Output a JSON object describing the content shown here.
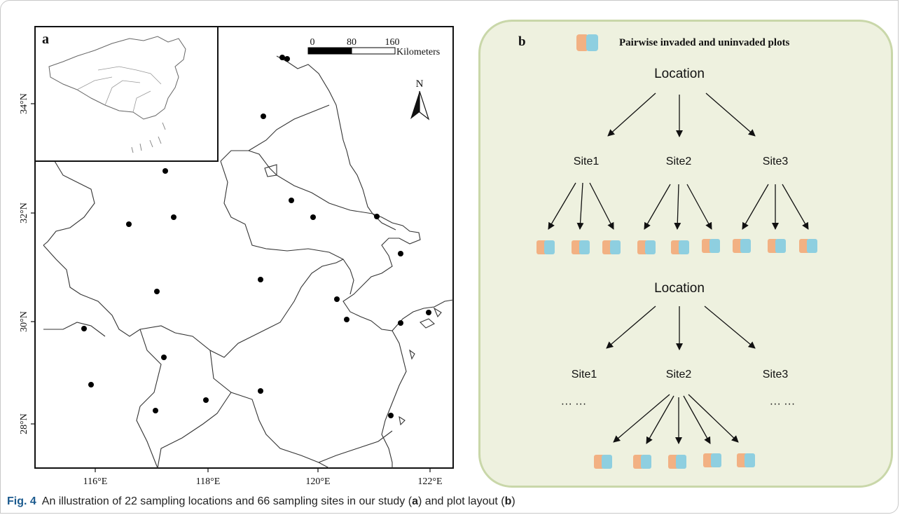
{
  "panel_a": {
    "label": "a",
    "lat_labels": [
      "34°N",
      "32°N",
      "30°N",
      "28°N"
    ],
    "lon_labels": [
      "116°E",
      "118°E",
      "120°E",
      "122°E"
    ],
    "scale_bar": {
      "ticks": [
        "0",
        "80",
        "160"
      ],
      "unit": "Kilometers"
    },
    "north_label": "N",
    "sampling_points_count": 22
  },
  "panel_b": {
    "label": "b",
    "legend_text": "Pairwise invaded and uninvaded plots",
    "location_label": "Location",
    "site_labels": [
      "Site1",
      "Site2",
      "Site3"
    ],
    "ellipsis": "··· ···",
    "colors": {
      "invaded": "#f2b183",
      "uninvaded": "#8ecfe0",
      "panel_bg": "#eef1df",
      "panel_border": "#c9d7a9"
    }
  },
  "caption": {
    "label": "Fig. 4",
    "text_1": "An illustration of 22 sampling locations and 66 sampling sites in our study (",
    "bold_a": "a",
    "text_2": ") and plot layout (",
    "bold_b": "b",
    "text_3": ")"
  }
}
